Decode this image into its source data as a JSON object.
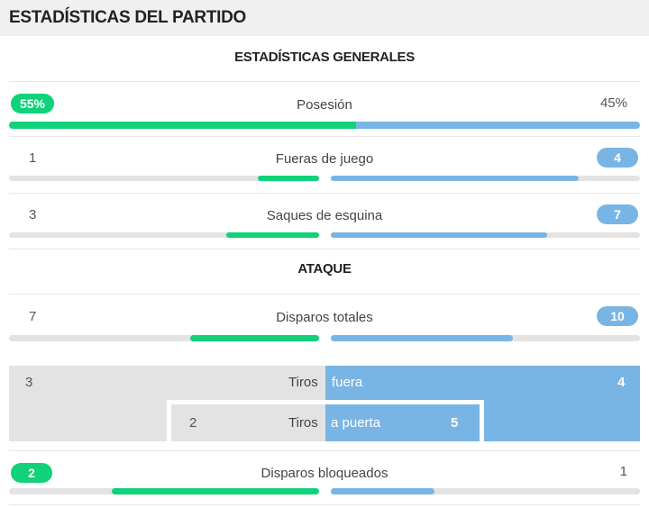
{
  "header": {
    "title": "ESTADÍSTICAS DEL PARTIDO"
  },
  "sections": {
    "general": "ESTADÍSTICAS GENERALES",
    "attack": "ATAQUE"
  },
  "possession": {
    "label": "Posesión",
    "home": "55%",
    "away": "45%",
    "home_pct": 55,
    "away_pct": 45
  },
  "offsides": {
    "label": "Fueras de juego",
    "home": "1",
    "away": "4"
  },
  "corners": {
    "label": "Saques de esquina",
    "home": "3",
    "away": "7"
  },
  "total_shots": {
    "label": "Disparos totales",
    "home": "7",
    "away": "10"
  },
  "shots_off": {
    "prefix": "Tiros",
    "suffix": "fuera",
    "home": "3",
    "away": "4"
  },
  "shots_on": {
    "prefix": "Tiros",
    "suffix": "a puerta",
    "home": "2",
    "away": "5"
  },
  "blocked_shots": {
    "label": "Disparos bloqueados",
    "home": "2",
    "away": "1"
  },
  "colors": {
    "home": "#0fd27a",
    "away": "#79b5e4",
    "track": "#e3e3e3"
  }
}
